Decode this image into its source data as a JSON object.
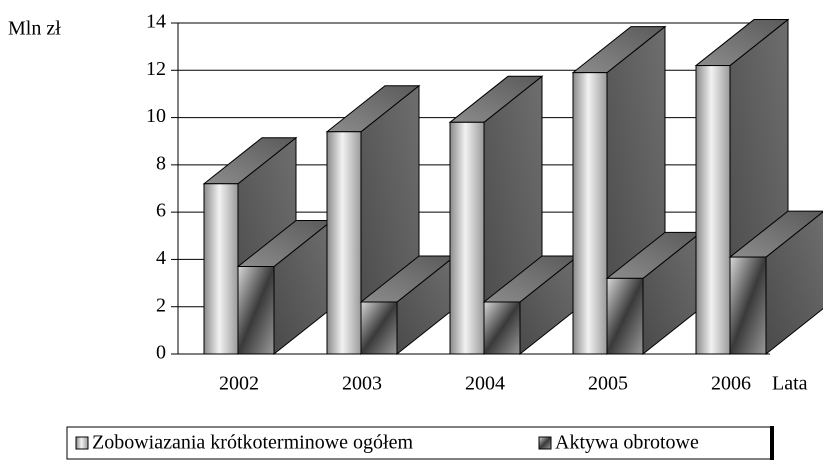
{
  "chart_data": {
    "type": "bar3d",
    "ylabel": "Mln zł",
    "xlabel": "Lata",
    "categories": [
      "2002",
      "2003",
      "2004",
      "2005",
      "2006"
    ],
    "series": [
      {
        "name": "Zobowiazania krótkoterminowe ogółem",
        "color": "#c0c0c0",
        "values": [
          7.2,
          9.4,
          9.8,
          11.9,
          12.2
        ]
      },
      {
        "name": "Aktywa obrotowe",
        "color": "#606060",
        "values": [
          3.7,
          2.2,
          2.2,
          3.2,
          4.1
        ]
      }
    ],
    "ylim": [
      0,
      14
    ],
    "yticks": [
      0,
      2,
      4,
      6,
      8,
      10,
      12,
      14
    ],
    "grid": true
  }
}
